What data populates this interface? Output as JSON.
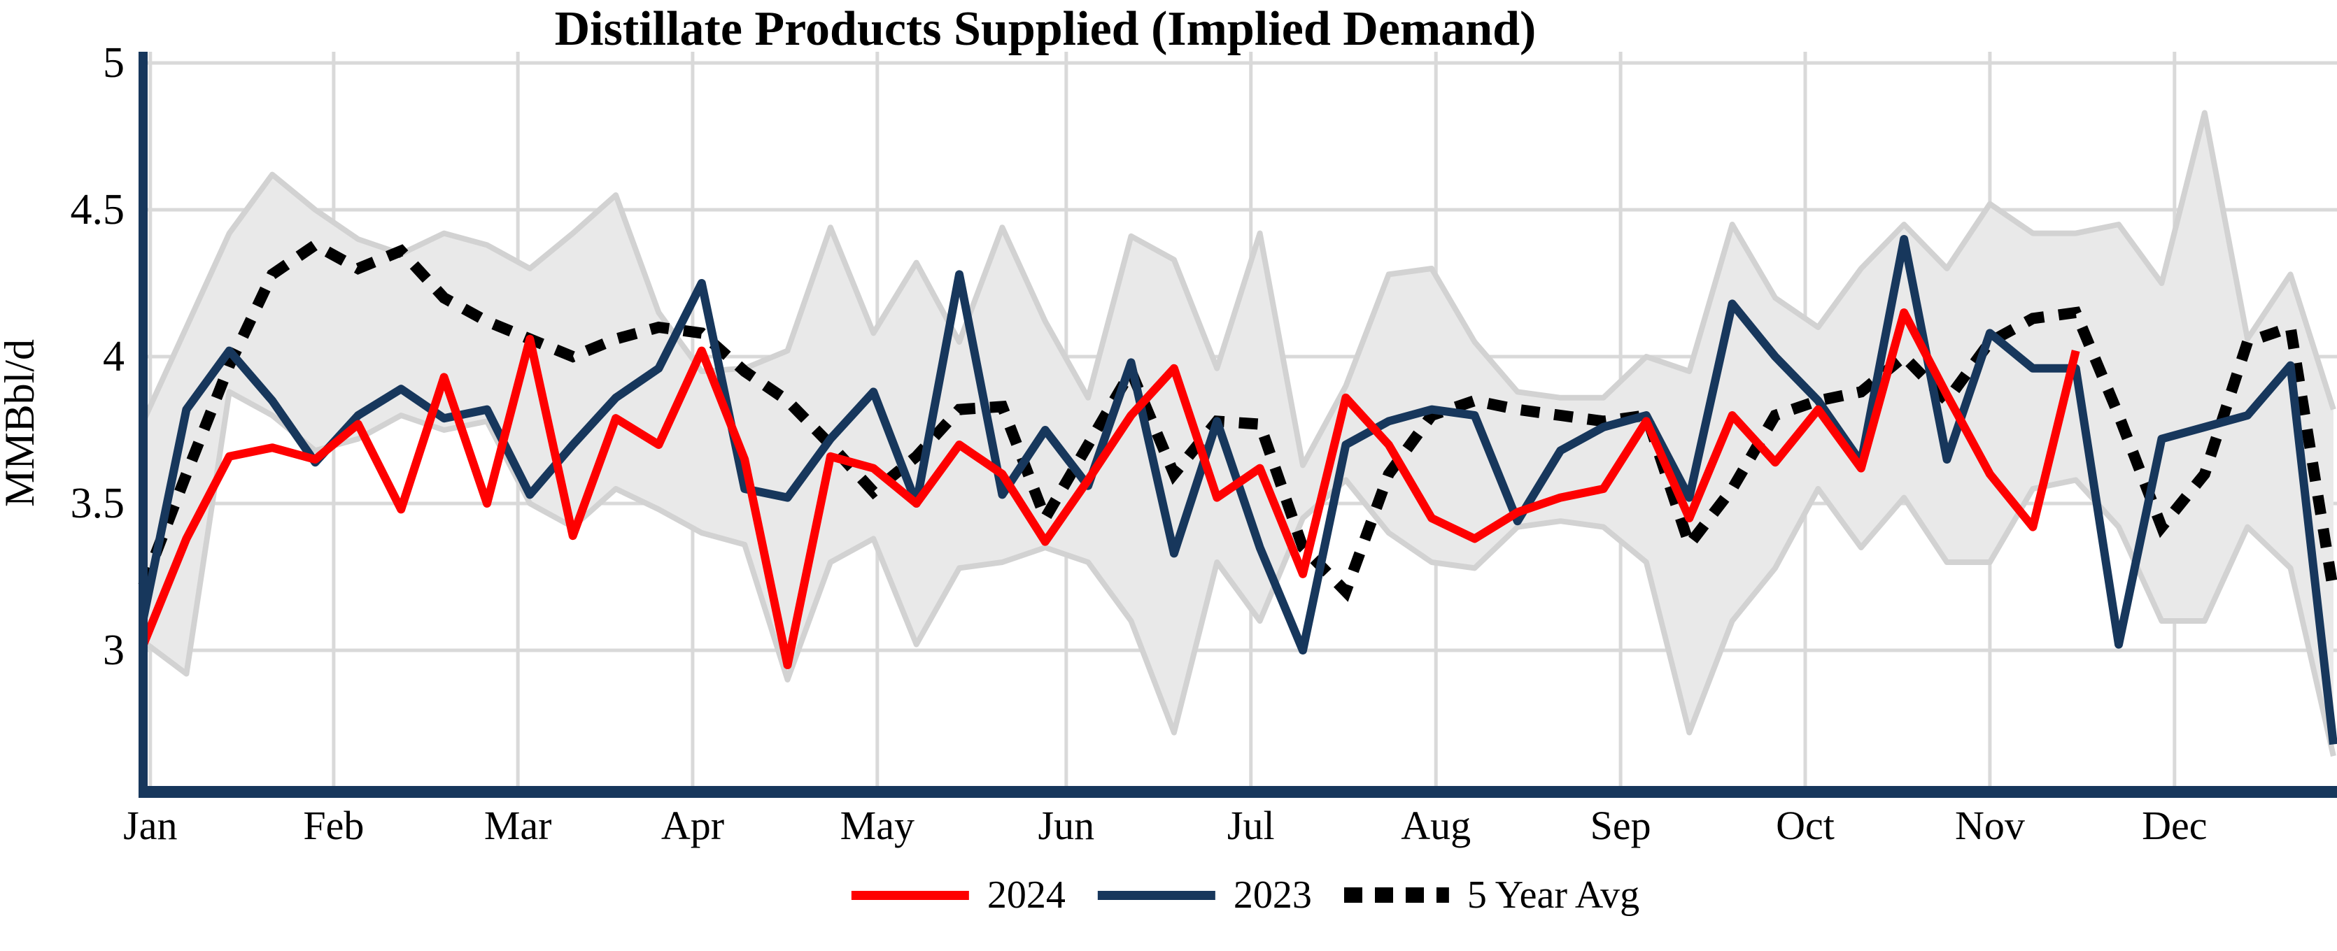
{
  "title": "Distillate Products Supplied (Implied Demand)",
  "y_axis": {
    "label": "MMBbl/d",
    "tick_labels": [
      "5",
      "4.5",
      "4",
      "3.5",
      "3"
    ],
    "tick_values": [
      5,
      4.5,
      4,
      3.5,
      3
    ],
    "axis_min": 2.54,
    "axis_max": 5.0
  },
  "x_axis": {
    "month_labels": [
      "Jan",
      "Feb",
      "Mar",
      "Apr",
      "May",
      "Jun",
      "Jul",
      "Aug",
      "Sep",
      "Oct",
      "Nov",
      "Dec"
    ],
    "month_week_positions": [
      0.16,
      4.43,
      8.72,
      12.79,
      17.09,
      21.49,
      25.79,
      30.1,
      34.4,
      38.7,
      43.0,
      47.3
    ]
  },
  "legend": {
    "items": [
      {
        "label": "2024",
        "color": "#FE0000",
        "style": "solid"
      },
      {
        "label": "2023",
        "color": "#17375C",
        "style": "solid"
      },
      {
        "label": "5 Year Avg",
        "color": "#000000",
        "style": "dotted"
      }
    ]
  },
  "colors": {
    "series_2024": "#FE0000",
    "series_2023": "#17375C",
    "five_year_avg": "#000000",
    "band_fill": "#E9E9E9",
    "band_edge": "#D2D2D2",
    "gridline": "#D9D9D9",
    "axis": "#17375C",
    "text": "#000000"
  },
  "chart_data": {
    "type": "line",
    "title": "Distillate Products Supplied (Implied Demand)",
    "ylabel": "MMBbl/d",
    "ylim": [
      2.54,
      5.0
    ],
    "grid": true,
    "legend_position": "bottom-center",
    "x_unit": "week-of-year (52 weekly points, Jan through Dec)",
    "band_description": "5-year min/max range (gray shaded area)",
    "series": [
      {
        "name": "2024",
        "color": "#FE0000",
        "style": "solid",
        "values": [
          3.02,
          3.38,
          3.66,
          3.69,
          3.65,
          3.77,
          3.48,
          3.93,
          3.5,
          4.06,
          3.39,
          3.79,
          3.7,
          4.02,
          3.65,
          2.95,
          3.66,
          3.62,
          3.5,
          3.7,
          3.6,
          3.37,
          3.58,
          3.8,
          3.96,
          3.52,
          3.62,
          3.26,
          3.86,
          3.7,
          3.45,
          3.38,
          3.47,
          3.52,
          3.55,
          3.78,
          3.45,
          3.8,
          3.64,
          3.82,
          3.62,
          4.15,
          3.87,
          3.6,
          3.42,
          4.02
        ]
      },
      {
        "name": "2023",
        "color": "#17375C",
        "style": "solid",
        "values": [
          3.11,
          3.82,
          4.02,
          3.85,
          3.64,
          3.8,
          3.89,
          3.79,
          3.82,
          3.53,
          3.7,
          3.86,
          3.96,
          4.25,
          3.55,
          3.52,
          3.72,
          3.88,
          3.5,
          4.28,
          3.53,
          3.75,
          3.56,
          3.98,
          3.33,
          3.78,
          3.35,
          3.0,
          3.7,
          3.78,
          3.82,
          3.8,
          3.44,
          3.68,
          3.76,
          3.8,
          3.52,
          4.18,
          4.0,
          3.85,
          3.64,
          4.4,
          3.65,
          4.08,
          3.96,
          3.96,
          3.02,
          3.72,
          3.76,
          3.8,
          3.97,
          2.68
        ]
      },
      {
        "name": "5 Year Avg",
        "color": "#000000",
        "style": "dotted",
        "values": [
          3.22,
          3.6,
          3.97,
          4.28,
          4.38,
          4.3,
          4.36,
          4.2,
          4.12,
          4.06,
          4.0,
          4.06,
          4.1,
          4.08,
          3.95,
          3.85,
          3.7,
          3.54,
          3.66,
          3.82,
          3.83,
          3.45,
          3.7,
          3.95,
          3.6,
          3.78,
          3.77,
          3.35,
          3.2,
          3.6,
          3.8,
          3.85,
          3.82,
          3.8,
          3.78,
          3.8,
          3.36,
          3.55,
          3.8,
          3.85,
          3.88,
          4.0,
          3.85,
          4.05,
          4.13,
          4.15,
          3.8,
          3.42,
          3.6,
          4.05,
          4.1,
          3.2
        ]
      }
    ],
    "band": {
      "name": "5-year range",
      "max": [
        3.78,
        4.1,
        4.42,
        4.62,
        4.5,
        4.4,
        4.35,
        4.42,
        4.38,
        4.3,
        4.42,
        4.55,
        4.15,
        3.95,
        3.96,
        4.02,
        4.44,
        4.08,
        4.32,
        4.05,
        4.44,
        4.12,
        3.86,
        4.41,
        4.33,
        3.96,
        4.42,
        3.63,
        3.9,
        4.28,
        4.3,
        4.05,
        3.88,
        3.86,
        3.86,
        4.0,
        3.95,
        4.45,
        4.2,
        4.1,
        4.3,
        4.45,
        4.3,
        4.52,
        4.42,
        4.42,
        4.45,
        4.25,
        4.83,
        4.06,
        4.28,
        3.82
      ],
      "min": [
        3.03,
        2.92,
        3.88,
        3.8,
        3.68,
        3.72,
        3.8,
        3.75,
        3.78,
        3.5,
        3.42,
        3.55,
        3.48,
        3.4,
        3.36,
        2.9,
        3.3,
        3.38,
        3.02,
        3.28,
        3.3,
        3.35,
        3.3,
        3.1,
        2.72,
        3.3,
        3.1,
        3.45,
        3.58,
        3.4,
        3.3,
        3.28,
        3.42,
        3.44,
        3.42,
        3.3,
        2.72,
        3.1,
        3.28,
        3.55,
        3.35,
        3.52,
        3.3,
        3.3,
        3.55,
        3.58,
        3.42,
        3.1,
        3.1,
        3.42,
        3.28,
        2.64
      ]
    }
  }
}
